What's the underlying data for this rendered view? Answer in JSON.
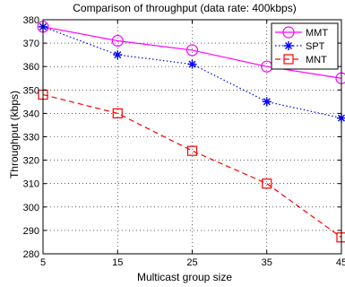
{
  "chart_data": {
    "type": "line",
    "title": "Comparison of throughput (data rate: 400kbps)",
    "xlabel": "Multicast group size",
    "ylabel": "Throughput (kbps)",
    "x": [
      5,
      15,
      25,
      35,
      45
    ],
    "xlim": [
      5,
      45
    ],
    "ylim": [
      280,
      380
    ],
    "xticks": [
      "5",
      "15",
      "25",
      "35",
      "45"
    ],
    "yticks": [
      "280",
      "290",
      "300",
      "310",
      "320",
      "330",
      "340",
      "350",
      "360",
      "370",
      "380"
    ],
    "grid": true,
    "legend_position": "top-right",
    "series": [
      {
        "name": "MMT",
        "values": [
          377,
          371,
          367,
          360,
          355
        ],
        "color": "#ff00ff",
        "marker": "circle",
        "line_style": "solid"
      },
      {
        "name": "SPT",
        "values": [
          377,
          365,
          361,
          345,
          338
        ],
        "color": "#0000ff",
        "marker": "asterisk",
        "line_style": "dotted"
      },
      {
        "name": "MNT",
        "values": [
          348,
          340,
          324,
          310,
          287
        ],
        "color": "#ff0000",
        "marker": "square",
        "line_style": "dashed"
      }
    ]
  }
}
